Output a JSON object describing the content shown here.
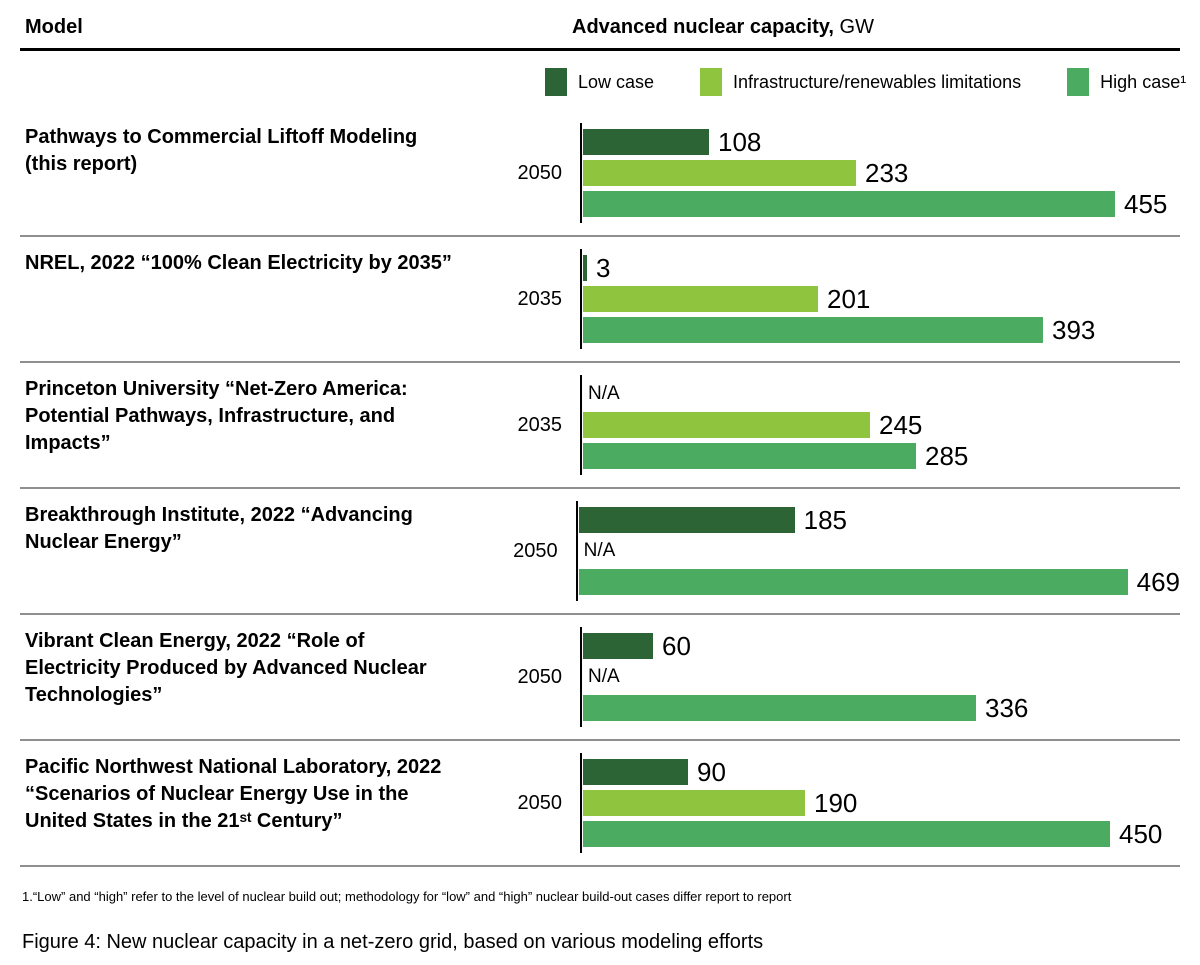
{
  "header": {
    "model_column": "Model",
    "value_column_bold": "Advanced nuclear capacity,",
    "value_column_unit": " GW"
  },
  "legend": [
    {
      "label": "Low case",
      "series": "low",
      "color": "#2d6435"
    },
    {
      "label": "Infrastructure/renewables limitations",
      "series": "infra",
      "color": "#8fc43f"
    },
    {
      "label": "High case¹",
      "series": "high",
      "color": "#4bab60"
    }
  ],
  "chart_data": {
    "type": "bar",
    "orientation": "horizontal",
    "title": "Advanced nuclear capacity, GW",
    "unit": "GW",
    "xlim": [
      0,
      500
    ],
    "grid": false,
    "legend_position": "top-right",
    "na_text": "N/A",
    "colors": {
      "low": "#2d6435",
      "infra": "#8fc43f",
      "high": "#4bab60"
    },
    "series_names": {
      "low": "Low case",
      "infra": "Infrastructure/renewables limitations",
      "high": "High case"
    },
    "rows": [
      {
        "model_lines": [
          "Pathways to Commercial Liftoff Modeling",
          "(this report)"
        ],
        "year": "2050",
        "bars": [
          {
            "series": "low",
            "value": 108,
            "label": "108"
          },
          {
            "series": "infra",
            "value": 233,
            "label": "233"
          },
          {
            "series": "high",
            "value": 455,
            "label": "455"
          }
        ]
      },
      {
        "model_lines": [
          "NREL, 2022 “100% Clean Electricity by 2035”"
        ],
        "year": "2035",
        "bars": [
          {
            "series": "low",
            "value": 3,
            "label": "3"
          },
          {
            "series": "infra",
            "value": 201,
            "label": "201"
          },
          {
            "series": "high",
            "value": 393,
            "label": "393"
          }
        ]
      },
      {
        "model_lines": [
          "Princeton University “Net-Zero America:",
          "Potential Pathways, Infrastructure, and",
          "Impacts”"
        ],
        "year": "2035",
        "bars": [
          {
            "series": "low",
            "value": null,
            "label": "N/A"
          },
          {
            "series": "infra",
            "value": 245,
            "label": "245"
          },
          {
            "series": "high",
            "value": 285,
            "label": "285"
          }
        ]
      },
      {
        "model_lines": [
          "Breakthrough Institute, 2022 “Advancing",
          "Nuclear Energy”"
        ],
        "year": "2050",
        "bars": [
          {
            "series": "low",
            "value": 185,
            "label": "185"
          },
          {
            "series": "infra",
            "value": null,
            "label": "N/A"
          },
          {
            "series": "high",
            "value": 469,
            "label": "469"
          }
        ]
      },
      {
        "model_lines": [
          "Vibrant Clean Energy, 2022 “Role of",
          "Electricity Produced by Advanced Nuclear",
          "Technologies”"
        ],
        "year": "2050",
        "bars": [
          {
            "series": "low",
            "value": 60,
            "label": "60"
          },
          {
            "series": "infra",
            "value": null,
            "label": "N/A"
          },
          {
            "series": "high",
            "value": 336,
            "label": "336"
          }
        ]
      },
      {
        "model_lines": [
          "Pacific Northwest National Laboratory, 2022",
          "“Scenarios of Nuclear Energy Use in the",
          "United States in the 21ˢᵗ Century”"
        ],
        "year": "2050",
        "bars": [
          {
            "series": "low",
            "value": 90,
            "label": "90"
          },
          {
            "series": "infra",
            "value": 190,
            "label": "190"
          },
          {
            "series": "high",
            "value": 450,
            "label": "450"
          }
        ]
      }
    ]
  },
  "footnote": "1.“Low” and “high” refer to the level of nuclear build out; methodology for “low” and “high” nuclear build-out cases differ report to report",
  "caption": "Figure 4: New nuclear capacity in a net-zero grid, based on various modeling efforts"
}
